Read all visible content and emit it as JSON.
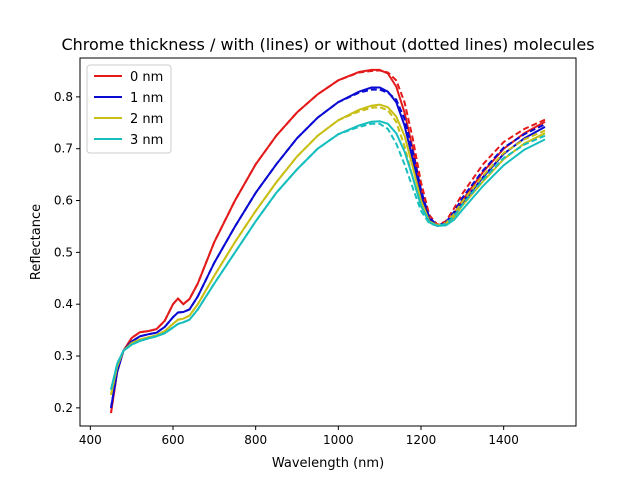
{
  "chart_data": {
    "type": "line",
    "title": "Chrome thickness / with (lines) or without (dotted lines) molecules",
    "xlabel": "Wavelength (nm)",
    "ylabel": "Reflectance",
    "xlim": [
      375,
      1575
    ],
    "ylim": [
      0.165,
      0.875
    ],
    "xticks": [
      400,
      600,
      800,
      1000,
      1200,
      1400
    ],
    "yticks": [
      0.2,
      0.3,
      0.4,
      0.5,
      0.6,
      0.7,
      0.8
    ],
    "grid": false,
    "legend_position": "upper-left",
    "series": [
      {
        "name": "0 nm",
        "color": "#e41a1a",
        "x": [
          450,
          465,
          480,
          500,
          520,
          540,
          560,
          580,
          600,
          612,
          625,
          640,
          660,
          700,
          750,
          800,
          850,
          900,
          950,
          1000,
          1050,
          1080,
          1100,
          1120,
          1140,
          1160,
          1180,
          1200,
          1220,
          1240,
          1260,
          1280,
          1300,
          1350,
          1400,
          1450,
          1500
        ],
        "with_molecules": [
          0.19,
          0.27,
          0.31,
          0.335,
          0.346,
          0.348,
          0.352,
          0.368,
          0.4,
          0.411,
          0.4,
          0.41,
          0.44,
          0.52,
          0.6,
          0.67,
          0.725,
          0.77,
          0.805,
          0.832,
          0.848,
          0.852,
          0.852,
          0.845,
          0.82,
          0.77,
          0.7,
          0.62,
          0.565,
          0.552,
          0.555,
          0.575,
          0.6,
          0.655,
          0.7,
          0.73,
          0.752
        ],
        "without_molecules": [
          0.19,
          0.27,
          0.31,
          0.335,
          0.346,
          0.348,
          0.352,
          0.368,
          0.4,
          0.411,
          0.4,
          0.41,
          0.44,
          0.52,
          0.6,
          0.67,
          0.725,
          0.77,
          0.805,
          0.832,
          0.847,
          0.85,
          0.851,
          0.847,
          0.832,
          0.79,
          0.72,
          0.635,
          0.572,
          0.553,
          0.56,
          0.585,
          0.613,
          0.67,
          0.713,
          0.738,
          0.756
        ]
      },
      {
        "name": "1 nm",
        "color": "#0a0ad2",
        "x": [
          450,
          465,
          480,
          500,
          520,
          540,
          560,
          580,
          600,
          612,
          625,
          640,
          660,
          700,
          750,
          800,
          850,
          900,
          950,
          1000,
          1050,
          1080,
          1100,
          1120,
          1140,
          1160,
          1180,
          1200,
          1220,
          1240,
          1260,
          1280,
          1300,
          1350,
          1400,
          1450,
          1500
        ],
        "with_molecules": [
          0.2,
          0.27,
          0.31,
          0.328,
          0.338,
          0.342,
          0.345,
          0.356,
          0.375,
          0.384,
          0.385,
          0.39,
          0.415,
          0.48,
          0.55,
          0.615,
          0.67,
          0.72,
          0.76,
          0.79,
          0.81,
          0.818,
          0.818,
          0.81,
          0.79,
          0.745,
          0.68,
          0.61,
          0.563,
          0.551,
          0.555,
          0.572,
          0.595,
          0.645,
          0.69,
          0.72,
          0.742
        ],
        "without_molecules": [
          0.2,
          0.27,
          0.31,
          0.328,
          0.338,
          0.342,
          0.345,
          0.356,
          0.375,
          0.384,
          0.385,
          0.39,
          0.415,
          0.48,
          0.55,
          0.615,
          0.67,
          0.72,
          0.76,
          0.79,
          0.808,
          0.814,
          0.814,
          0.808,
          0.795,
          0.758,
          0.695,
          0.62,
          0.567,
          0.552,
          0.558,
          0.578,
          0.605,
          0.658,
          0.702,
          0.728,
          0.747
        ]
      },
      {
        "name": "2 nm",
        "color": "#c8be14",
        "x": [
          450,
          465,
          480,
          500,
          520,
          540,
          560,
          580,
          600,
          612,
          625,
          640,
          660,
          700,
          750,
          800,
          850,
          900,
          950,
          1000,
          1050,
          1080,
          1100,
          1120,
          1140,
          1160,
          1180,
          1200,
          1220,
          1240,
          1260,
          1280,
          1300,
          1350,
          1400,
          1450,
          1500
        ],
        "with_molecules": [
          0.225,
          0.28,
          0.31,
          0.325,
          0.332,
          0.336,
          0.34,
          0.348,
          0.362,
          0.37,
          0.372,
          0.378,
          0.4,
          0.455,
          0.52,
          0.58,
          0.635,
          0.685,
          0.725,
          0.755,
          0.775,
          0.783,
          0.785,
          0.78,
          0.762,
          0.725,
          0.665,
          0.6,
          0.56,
          0.552,
          0.553,
          0.568,
          0.59,
          0.637,
          0.68,
          0.71,
          0.73
        ],
        "without_molecules": [
          0.225,
          0.28,
          0.31,
          0.325,
          0.332,
          0.336,
          0.34,
          0.348,
          0.362,
          0.37,
          0.372,
          0.378,
          0.4,
          0.455,
          0.52,
          0.58,
          0.635,
          0.685,
          0.725,
          0.755,
          0.772,
          0.779,
          0.78,
          0.774,
          0.752,
          0.705,
          0.645,
          0.59,
          0.558,
          0.552,
          0.556,
          0.574,
          0.598,
          0.648,
          0.692,
          0.718,
          0.735
        ]
      },
      {
        "name": "3 nm",
        "color": "#17bebe",
        "x": [
          450,
          465,
          480,
          500,
          520,
          540,
          560,
          580,
          600,
          612,
          625,
          640,
          660,
          700,
          750,
          800,
          850,
          900,
          950,
          1000,
          1050,
          1080,
          1100,
          1120,
          1140,
          1160,
          1180,
          1200,
          1220,
          1240,
          1260,
          1280,
          1300,
          1350,
          1400,
          1450,
          1500
        ],
        "with_molecules": [
          0.235,
          0.285,
          0.31,
          0.322,
          0.329,
          0.334,
          0.338,
          0.344,
          0.355,
          0.362,
          0.365,
          0.37,
          0.39,
          0.44,
          0.5,
          0.56,
          0.615,
          0.66,
          0.7,
          0.728,
          0.745,
          0.752,
          0.753,
          0.748,
          0.73,
          0.695,
          0.645,
          0.59,
          0.558,
          0.551,
          0.552,
          0.563,
          0.582,
          0.628,
          0.668,
          0.698,
          0.718
        ],
        "without_molecules": [
          0.235,
          0.285,
          0.31,
          0.322,
          0.329,
          0.334,
          0.338,
          0.344,
          0.355,
          0.362,
          0.365,
          0.37,
          0.39,
          0.44,
          0.5,
          0.56,
          0.615,
          0.66,
          0.7,
          0.728,
          0.742,
          0.748,
          0.748,
          0.738,
          0.71,
          0.67,
          0.625,
          0.58,
          0.556,
          0.551,
          0.555,
          0.57,
          0.592,
          0.64,
          0.682,
          0.708,
          0.725
        ]
      }
    ]
  }
}
